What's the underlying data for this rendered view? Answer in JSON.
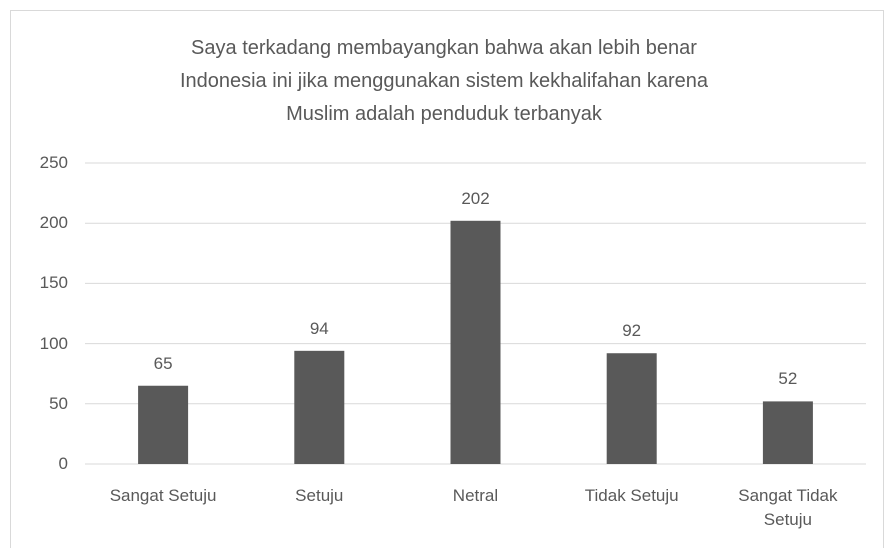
{
  "chart_data": {
    "type": "bar",
    "title": "Saya terkadang membayangkan bahwa akan lebih benar\nIndonesia ini jika menggunakan sistem kekhalifahan karena\nMuslim adalah penduduk terbanyak",
    "categories": [
      "Sangat Setuju",
      "Setuju",
      "Netral",
      "Tidak Setuju",
      "Sangat Tidak Setuju"
    ],
    "values": [
      65,
      94,
      202,
      92,
      52
    ],
    "color": "#595959",
    "ylim": [
      0,
      250
    ],
    "yticks": [
      0,
      50,
      100,
      150,
      200,
      250
    ],
    "grid": true
  }
}
